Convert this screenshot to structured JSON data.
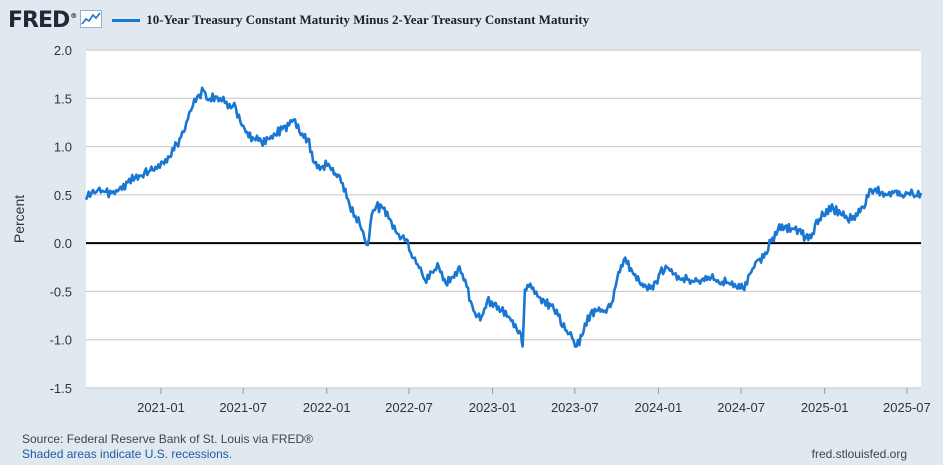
{
  "header": {
    "logo_text": "FRED",
    "logo_mark": "®",
    "logo_icon": "trend-line-icon",
    "legend_label": "10-Year Treasury Constant Maturity Minus 2-Year Treasury Constant Maturity",
    "series_color": "#1976d2"
  },
  "chart_data": {
    "type": "line",
    "title": "10-Year Treasury Constant Maturity Minus 2-Year Treasury Constant Maturity",
    "ylabel": "Percent",
    "xlabel": "",
    "ylim": [
      -1.5,
      2.0
    ],
    "xlim": [
      "2020-07-20",
      "2025-08-01"
    ],
    "yticks": [
      {
        "value": 2.0,
        "label": "2.0"
      },
      {
        "value": 1.5,
        "label": "1.5"
      },
      {
        "value": 1.0,
        "label": "1.0"
      },
      {
        "value": 0.5,
        "label": "0.5"
      },
      {
        "value": 0.0,
        "label": "0.0"
      },
      {
        "value": -0.5,
        "label": "-0.5"
      },
      {
        "value": -1.0,
        "label": "-1.0"
      },
      {
        "value": -1.5,
        "label": "-1.5"
      }
    ],
    "xticks": [
      {
        "date": "2021-01-01",
        "label": "2021-01"
      },
      {
        "date": "2021-07-01",
        "label": "2021-07"
      },
      {
        "date": "2022-01-01",
        "label": "2022-01"
      },
      {
        "date": "2022-07-01",
        "label": "2022-07"
      },
      {
        "date": "2023-01-01",
        "label": "2023-01"
      },
      {
        "date": "2023-07-01",
        "label": "2023-07"
      },
      {
        "date": "2024-01-01",
        "label": "2024-01"
      },
      {
        "date": "2024-07-01",
        "label": "2024-07"
      },
      {
        "date": "2025-01-01",
        "label": "2025-01"
      },
      {
        "date": "2025-07-01",
        "label": "2025-07"
      }
    ],
    "grid": true,
    "zero_line": true,
    "series": [
      {
        "name": "10-Year Treasury Constant Maturity Minus 2-Year Treasury Constant Maturity",
        "color": "#1976d2",
        "points": [
          [
            "2020-07-20",
            0.45
          ],
          [
            "2020-08-01",
            0.52
          ],
          [
            "2020-08-15",
            0.55
          ],
          [
            "2020-09-01",
            0.53
          ],
          [
            "2020-09-15",
            0.52
          ],
          [
            "2020-10-01",
            0.56
          ],
          [
            "2020-10-20",
            0.63
          ],
          [
            "2020-11-05",
            0.68
          ],
          [
            "2020-11-20",
            0.7
          ],
          [
            "2020-12-05",
            0.74
          ],
          [
            "2020-12-20",
            0.79
          ],
          [
            "2021-01-05",
            0.84
          ],
          [
            "2021-01-20",
            0.89
          ],
          [
            "2021-02-05",
            1.02
          ],
          [
            "2021-02-20",
            1.15
          ],
          [
            "2021-03-01",
            1.28
          ],
          [
            "2021-03-12",
            1.42
          ],
          [
            "2021-03-22",
            1.52
          ],
          [
            "2021-04-05",
            1.58
          ],
          [
            "2021-04-15",
            1.48
          ],
          [
            "2021-05-01",
            1.52
          ],
          [
            "2021-05-15",
            1.47
          ],
          [
            "2021-06-01",
            1.44
          ],
          [
            "2021-06-15",
            1.4
          ],
          [
            "2021-06-25",
            1.25
          ],
          [
            "2021-07-10",
            1.15
          ],
          [
            "2021-07-25",
            1.08
          ],
          [
            "2021-08-10",
            1.05
          ],
          [
            "2021-08-25",
            1.08
          ],
          [
            "2021-09-10",
            1.12
          ],
          [
            "2021-09-25",
            1.18
          ],
          [
            "2021-10-10",
            1.22
          ],
          [
            "2021-10-20",
            1.28
          ],
          [
            "2021-11-05",
            1.12
          ],
          [
            "2021-11-20",
            1.08
          ],
          [
            "2021-12-05",
            0.83
          ],
          [
            "2021-12-20",
            0.79
          ],
          [
            "2022-01-05",
            0.82
          ],
          [
            "2022-01-20",
            0.72
          ],
          [
            "2022-02-05",
            0.62
          ],
          [
            "2022-02-20",
            0.4
          ],
          [
            "2022-03-05",
            0.28
          ],
          [
            "2022-03-15",
            0.19
          ],
          [
            "2022-03-25",
            0.05
          ],
          [
            "2022-04-01",
            -0.02
          ],
          [
            "2022-04-10",
            0.3
          ],
          [
            "2022-04-20",
            0.38
          ],
          [
            "2022-05-05",
            0.36
          ],
          [
            "2022-05-20",
            0.25
          ],
          [
            "2022-06-05",
            0.1
          ],
          [
            "2022-06-15",
            0.06
          ],
          [
            "2022-06-25",
            0.04
          ],
          [
            "2022-07-05",
            -0.1
          ],
          [
            "2022-07-20",
            -0.22
          ],
          [
            "2022-08-05",
            -0.38
          ],
          [
            "2022-08-20",
            -0.3
          ],
          [
            "2022-09-05",
            -0.25
          ],
          [
            "2022-09-20",
            -0.42
          ],
          [
            "2022-10-05",
            -0.35
          ],
          [
            "2022-10-20",
            -0.24
          ],
          [
            "2022-11-05",
            -0.45
          ],
          [
            "2022-11-20",
            -0.7
          ],
          [
            "2022-12-05",
            -0.8
          ],
          [
            "2022-12-20",
            -0.6
          ],
          [
            "2023-01-05",
            -0.62
          ],
          [
            "2023-01-20",
            -0.7
          ],
          [
            "2023-02-05",
            -0.76
          ],
          [
            "2023-02-20",
            -0.84
          ],
          [
            "2023-03-05",
            -0.95
          ],
          [
            "2023-03-08",
            -1.07
          ],
          [
            "2023-03-13",
            -0.48
          ],
          [
            "2023-03-25",
            -0.42
          ],
          [
            "2023-04-10",
            -0.55
          ],
          [
            "2023-04-25",
            -0.6
          ],
          [
            "2023-05-10",
            -0.65
          ],
          [
            "2023-05-25",
            -0.75
          ],
          [
            "2023-06-10",
            -0.9
          ],
          [
            "2023-06-25",
            -0.98
          ],
          [
            "2023-07-05",
            -1.07
          ],
          [
            "2023-07-20",
            -0.92
          ],
          [
            "2023-08-05",
            -0.72
          ],
          [
            "2023-08-20",
            -0.7
          ],
          [
            "2023-09-05",
            -0.7
          ],
          [
            "2023-09-20",
            -0.62
          ],
          [
            "2023-10-05",
            -0.3
          ],
          [
            "2023-10-20",
            -0.15
          ],
          [
            "2023-11-05",
            -0.3
          ],
          [
            "2023-11-20",
            -0.4
          ],
          [
            "2023-12-05",
            -0.45
          ],
          [
            "2023-12-20",
            -0.48
          ],
          [
            "2024-01-05",
            -0.3
          ],
          [
            "2024-01-20",
            -0.25
          ],
          [
            "2024-02-05",
            -0.32
          ],
          [
            "2024-02-20",
            -0.38
          ],
          [
            "2024-03-05",
            -0.38
          ],
          [
            "2024-03-20",
            -0.4
          ],
          [
            "2024-04-05",
            -0.38
          ],
          [
            "2024-04-20",
            -0.35
          ],
          [
            "2024-05-05",
            -0.38
          ],
          [
            "2024-05-20",
            -0.4
          ],
          [
            "2024-06-05",
            -0.42
          ],
          [
            "2024-06-20",
            -0.45
          ],
          [
            "2024-07-05",
            -0.47
          ],
          [
            "2024-07-20",
            -0.32
          ],
          [
            "2024-08-05",
            -0.18
          ],
          [
            "2024-08-20",
            -0.15
          ],
          [
            "2024-09-05",
            0.02
          ],
          [
            "2024-09-20",
            0.14
          ],
          [
            "2024-10-05",
            0.17
          ],
          [
            "2024-10-20",
            0.15
          ],
          [
            "2024-11-05",
            0.14
          ],
          [
            "2024-11-20",
            0.06
          ],
          [
            "2024-12-05",
            0.1
          ],
          [
            "2024-12-20",
            0.25
          ],
          [
            "2025-01-05",
            0.35
          ],
          [
            "2025-01-20",
            0.36
          ],
          [
            "2025-02-05",
            0.3
          ],
          [
            "2025-02-20",
            0.25
          ],
          [
            "2025-03-05",
            0.28
          ],
          [
            "2025-03-20",
            0.32
          ],
          [
            "2025-04-01",
            0.4
          ],
          [
            "2025-04-10",
            0.56
          ],
          [
            "2025-04-20",
            0.55
          ],
          [
            "2025-05-05",
            0.52
          ],
          [
            "2025-05-20",
            0.5
          ],
          [
            "2025-06-05",
            0.54
          ],
          [
            "2025-06-20",
            0.5
          ],
          [
            "2025-07-05",
            0.52
          ],
          [
            "2025-07-20",
            0.49
          ],
          [
            "2025-08-01",
            0.52
          ]
        ]
      }
    ]
  },
  "footer": {
    "source": "Source: Federal Reserve Bank of St. Louis via FRED®",
    "recessions": "Shaded areas indicate U.S. recessions.",
    "site": "fred.stlouisfed.org"
  }
}
